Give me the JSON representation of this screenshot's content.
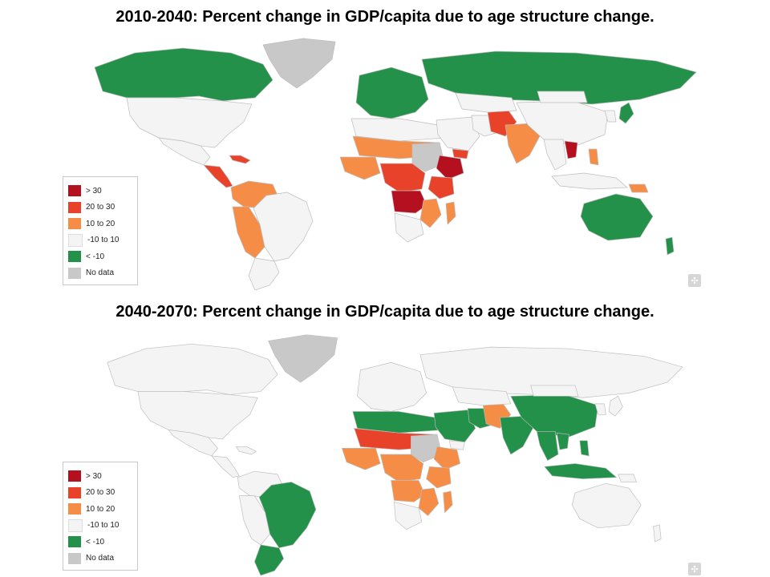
{
  "titles": {
    "top": "2010-2040:  Percent change in GDP/capita due to age structure change.",
    "bottom": "2040-2070:  Percent change in GDP/capita due to age structure change."
  },
  "legend": [
    {
      "key": "gt30",
      "label": "> 30",
      "color": "#b5101f"
    },
    {
      "key": "20to30",
      "label": "20 to 30",
      "color": "#e8432a"
    },
    {
      "key": "10to20",
      "label": "10 to 20",
      "color": "#f68d46"
    },
    {
      "key": "m10to10",
      "label": "-10 to 10",
      "color": "#f4f4f4"
    },
    {
      "key": "ltm10",
      "label": "< -10",
      "color": "#24914a"
    },
    {
      "key": "nodata",
      "label": "No data",
      "color": "#c8c8c8"
    }
  ],
  "maps": {
    "top": {
      "canada": "ltm10",
      "usa": "m10to10",
      "greenland": "nodata",
      "central_america": "20to30",
      "caribbean": "20to30",
      "mexico": "m10to10",
      "colombia_venezuela": "10to20",
      "peru_bolivia": "10to20",
      "brazil": "m10to10",
      "southern_cone": "m10to10",
      "europe": "ltm10",
      "russia": "ltm10",
      "north_africa": "m10to10",
      "sahel": "10to20",
      "west_africa": "10to20",
      "sudan": "nodata",
      "ethiopia": "gt30",
      "east_africa": "20to30",
      "central_africa": "20to30",
      "angola_drc_south": "gt30",
      "southern_africa": "m10to10",
      "zimbabwe_mozambique": "10to20",
      "madagascar": "10to20",
      "middle_east": "m10to10",
      "yemen": "20to30",
      "iran": "m10to10",
      "afghanistan_pakistan": "20to30",
      "central_asia": "m10to10",
      "india": "10to20",
      "china": "m10to10",
      "mongolia": "m10to10",
      "japan": "ltm10",
      "korea": "m10to10",
      "southeast_asia": "m10to10",
      "laos_cambodia": "gt30",
      "philippines": "10to20",
      "indonesia": "m10to10",
      "png": "10to20",
      "australia": "ltm10",
      "new_zealand": "ltm10"
    },
    "bottom": {
      "canada": "m10to10",
      "usa": "m10to10",
      "greenland": "nodata",
      "central_america": "m10to10",
      "caribbean": "m10to10",
      "mexico": "m10to10",
      "colombia_venezuela": "m10to10",
      "peru_bolivia": "m10to10",
      "brazil": "ltm10",
      "southern_cone": "ltm10",
      "europe": "m10to10",
      "russia": "m10to10",
      "north_africa": "ltm10",
      "sahel": "20to30",
      "west_africa": "10to20",
      "sudan": "nodata",
      "ethiopia": "10to20",
      "east_africa": "10to20",
      "central_africa": "10to20",
      "angola_drc_south": "10to20",
      "southern_africa": "m10to10",
      "zimbabwe_mozambique": "10to20",
      "madagascar": "10to20",
      "middle_east": "ltm10",
      "yemen": "m10to10",
      "iran": "ltm10",
      "afghanistan_pakistan": "10to20",
      "central_asia": "m10to10",
      "india": "ltm10",
      "china": "ltm10",
      "mongolia": "m10to10",
      "japan": "m10to10",
      "korea": "m10to10",
      "southeast_asia": "ltm10",
      "laos_cambodia": "ltm10",
      "philippines": "ltm10",
      "indonesia": "ltm10",
      "png": "m10to10",
      "australia": "m10to10",
      "new_zealand": "m10to10"
    }
  },
  "icons": {
    "zoom": "zoom-reset-icon"
  }
}
